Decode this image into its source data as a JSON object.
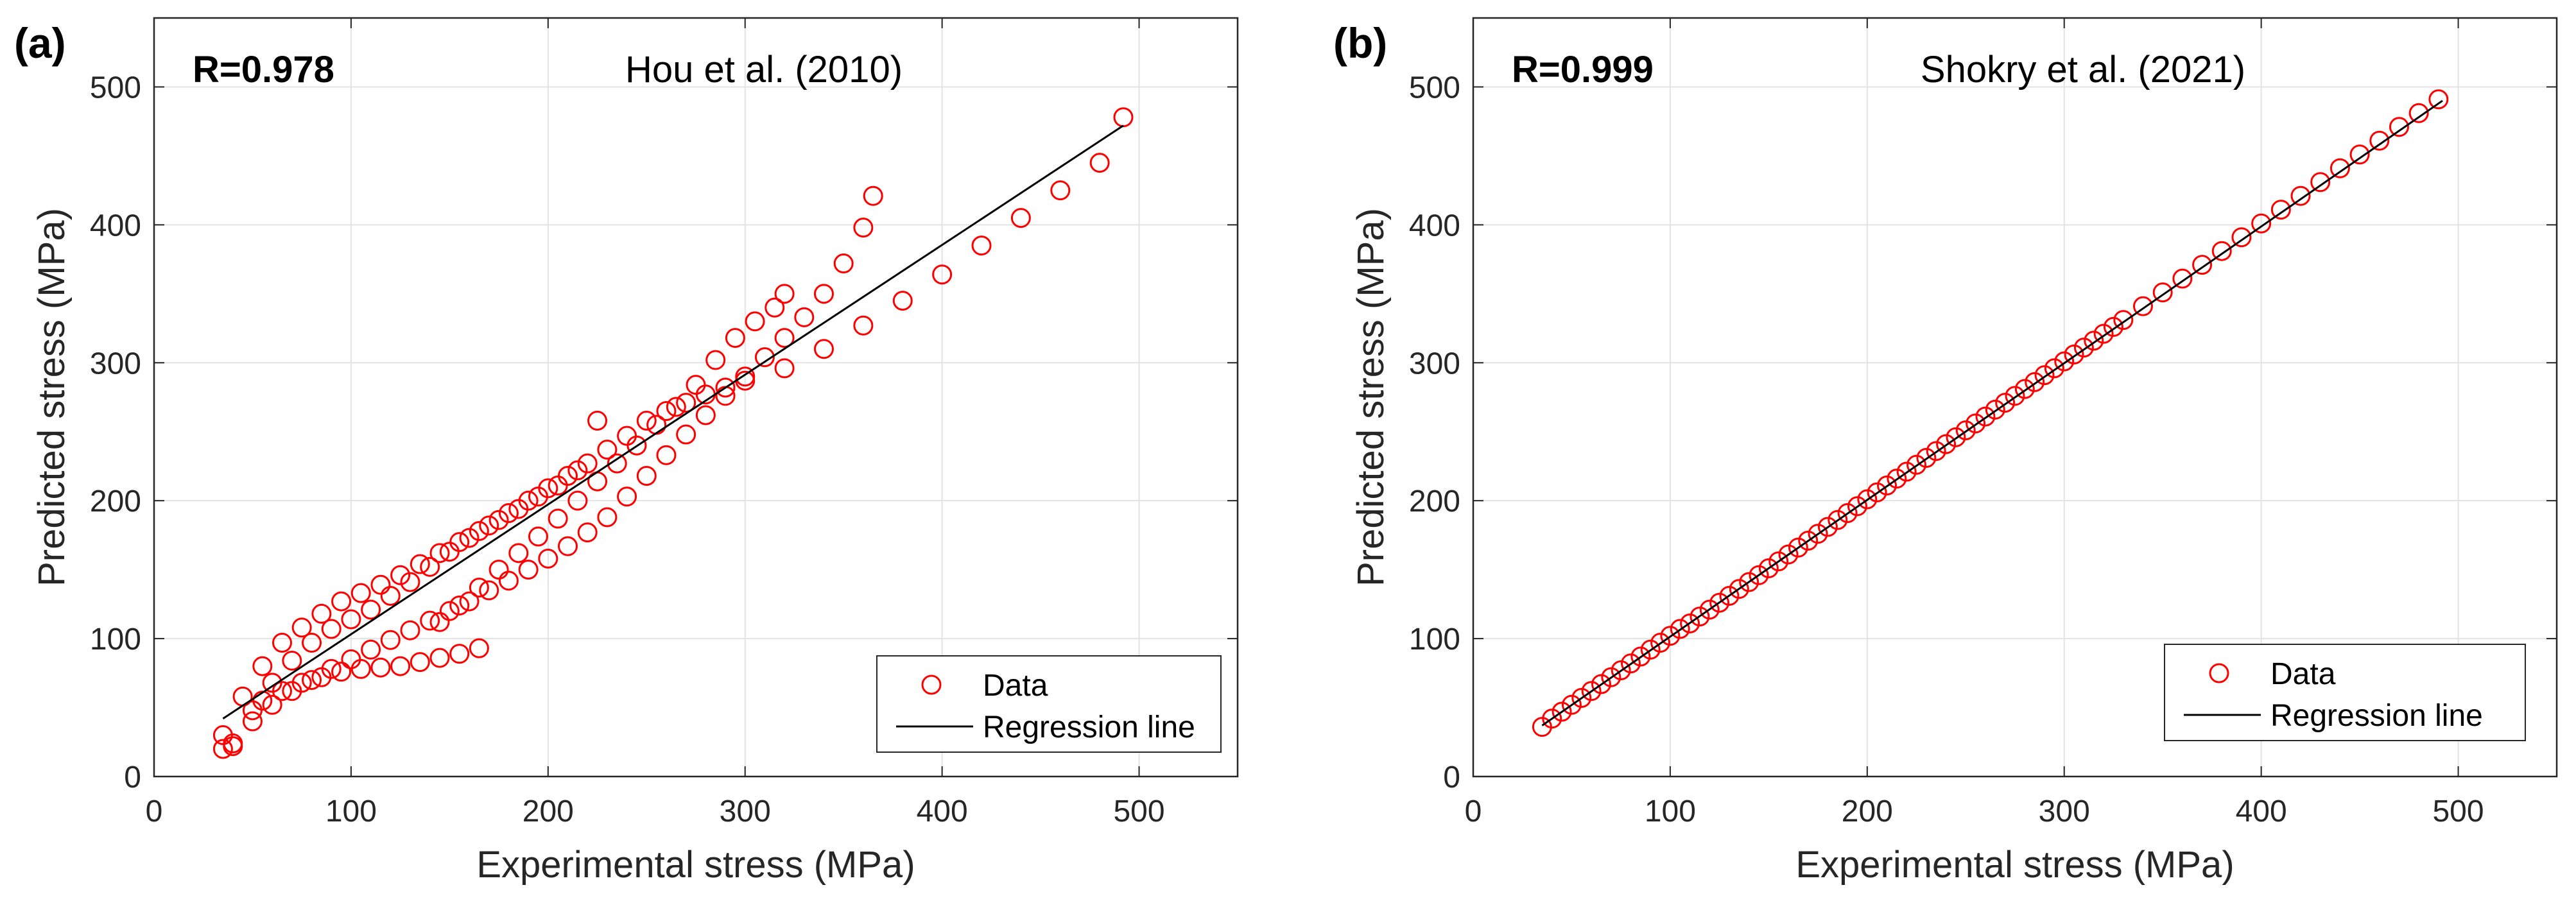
{
  "chart_data": [
    {
      "type": "scatter",
      "panel_label": "(a)",
      "title": "Hou et al. (2010)",
      "r_label": "R=0.978",
      "xlabel": "Experimental stress (MPa)",
      "ylabel": "Predicted stress (MPa)",
      "xlim": [
        0,
        550
      ],
      "ylim": [
        0,
        550
      ],
      "xticks": [
        0,
        100,
        200,
        300,
        400,
        500
      ],
      "yticks": [
        0,
        100,
        200,
        300,
        400,
        500
      ],
      "grid": true,
      "legend_position": "bottom-right",
      "colors": {
        "data": "#ff0000",
        "regression": "#000000"
      },
      "series": [
        {
          "name": "Data",
          "marker": "circle-open",
          "segments": [
            {
              "x": [
                35,
                40,
                50,
                60,
                70,
                80,
                90,
                100,
                110,
                120,
                130,
                140,
                150,
                160,
                170,
                180,
                190,
                200,
                210,
                220,
                230,
                240,
                250,
                260,
                270,
                280,
                290,
                300,
                320,
                340,
                360,
                380,
                400,
                420,
                440,
                460,
                480,
                492
              ],
              "y": [
                20,
                22,
                48,
                68,
                84,
                97,
                107,
                114,
                121,
                131,
                141,
                152,
                163,
                173,
                182,
                191,
                200,
                209,
                218,
                227,
                237,
                247,
                258,
                265,
                271,
                277,
                282,
                287,
                296,
                310,
                327,
                345,
                364,
                385,
                405,
                425,
                445,
                478
              ]
            },
            {
              "x": [
                35,
                45,
                55,
                65,
                75,
                85,
                95,
                105,
                115,
                125,
                135,
                145,
                155,
                165,
                175,
                185,
                195,
                205,
                215,
                225
              ],
              "y": [
                30,
                58,
                80,
                97,
                108,
                118,
                127,
                133,
                139,
                146,
                154,
                162,
                170,
                178,
                186,
                194,
                203,
                211,
                222,
                258
              ]
            },
            {
              "x": [
                40,
                50,
                60,
                70,
                80,
                90,
                100,
                110,
                120,
                130,
                140,
                150,
                160,
                170,
                180,
                190,
                200,
                210,
                220,
                230,
                240,
                250,
                260,
                270,
                280,
                290,
                300,
                310,
                320,
                330,
                340,
                350,
                360,
                365
              ],
              "y": [
                24,
                40,
                52,
                62,
                70,
                78,
                85,
                92,
                99,
                106,
                113,
                120,
                127,
                135,
                142,
                150,
                158,
                167,
                177,
                188,
                203,
                218,
                233,
                248,
                262,
                276,
                290,
                304,
                318,
                333,
                350,
                372,
                398,
                421
              ]
            },
            {
              "x": [
                55,
                65,
                75,
                85,
                95,
                105,
                115,
                125,
                135,
                145,
                155,
                165
              ],
              "y": [
                55,
                62,
                68,
                72,
                76,
                78,
                79,
                80,
                83,
                86,
                89,
                93
              ]
            },
            {
              "x": [
                145,
                155,
                165,
                175,
                185,
                195,
                205,
                215,
                225,
                235,
                245,
                255,
                265,
                275,
                285,
                295,
                305,
                315,
                320
              ],
              "y": [
                112,
                124,
                137,
                150,
                162,
                174,
                187,
                200,
                214,
                227,
                240,
                255,
                268,
                284,
                302,
                318,
                330,
                340,
                350
              ]
            }
          ]
        },
        {
          "name": "Regression line",
          "marker": "line",
          "x": [
            35,
            492
          ],
          "y": [
            42,
            472
          ]
        }
      ]
    },
    {
      "type": "scatter",
      "panel_label": "(b)",
      "title": "Shokry et al. (2021)",
      "r_label": "R=0.999",
      "xlabel": "Experimental stress (MPa)",
      "ylabel": "Predicted stress (MPa)",
      "xlim": [
        0,
        550
      ],
      "ylim": [
        0,
        550
      ],
      "xticks": [
        0,
        100,
        200,
        300,
        400,
        500
      ],
      "yticks": [
        0,
        100,
        200,
        300,
        400,
        500
      ],
      "grid": true,
      "legend_position": "bottom-right",
      "colors": {
        "data": "#ff0000",
        "regression": "#000000"
      },
      "series": [
        {
          "name": "Data",
          "marker": "circle-open",
          "segments": [
            {
              "x": [
                35,
                40,
                45,
                50,
                55,
                60,
                65,
                70,
                75,
                80,
                85,
                90,
                95,
                100,
                105,
                110,
                115,
                120,
                125,
                130,
                135,
                140,
                145,
                150,
                155,
                160,
                165,
                170,
                175,
                180,
                185,
                190,
                195,
                200,
                205,
                210,
                215,
                220,
                225,
                230,
                235,
                240,
                245,
                250,
                255,
                260,
                265,
                270,
                275,
                280,
                285,
                290,
                295,
                300,
                305,
                310,
                315,
                320,
                325,
                330,
                340,
                350,
                360,
                370,
                380,
                390,
                400,
                410,
                420,
                430,
                440,
                450,
                460,
                470,
                480,
                490
              ],
              "y": [
                36,
                42,
                47,
                52,
                57,
                62,
                67,
                72,
                77,
                82,
                87,
                92,
                97,
                102,
                107,
                111,
                116,
                121,
                126,
                131,
                136,
                141,
                146,
                151,
                156,
                161,
                166,
                171,
                176,
                181,
                186,
                191,
                196,
                201,
                206,
                211,
                216,
                221,
                226,
                231,
                236,
                241,
                246,
                251,
                256,
                261,
                266,
                271,
                276,
                281,
                286,
                291,
                296,
                301,
                306,
                311,
                316,
                321,
                326,
                331,
                341,
                351,
                361,
                371,
                381,
                391,
                401,
                411,
                421,
                431,
                441,
                451,
                461,
                471,
                481,
                491
              ]
            }
          ]
        },
        {
          "name": "Regression line",
          "marker": "line",
          "x": [
            35,
            492
          ],
          "y": [
            37,
            490
          ]
        }
      ]
    }
  ]
}
